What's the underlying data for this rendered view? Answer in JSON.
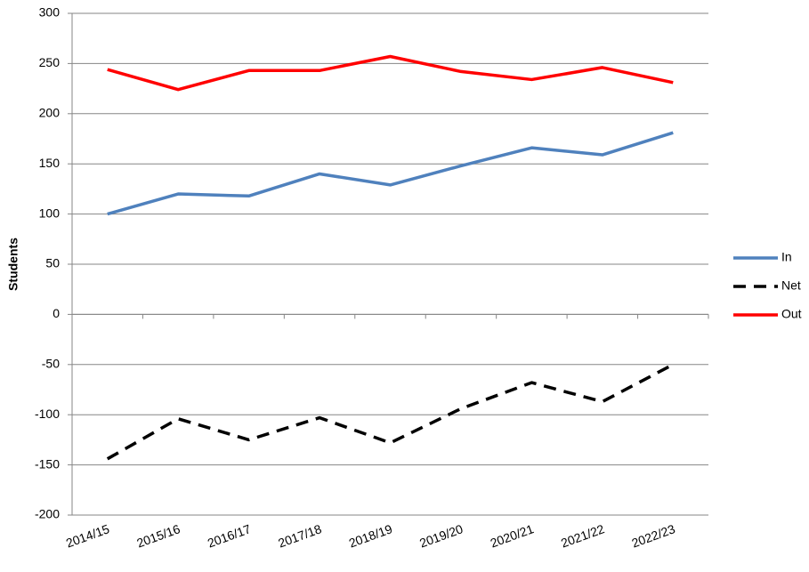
{
  "chart_data": {
    "type": "line",
    "y_label": "Students",
    "categories": [
      "2014/15",
      "2015/16",
      "2016/17",
      "2017/18",
      "2018/19",
      "2019/20",
      "2020/21",
      "2021/22",
      "2022/23"
    ],
    "series": [
      {
        "name": "In",
        "color": "#4f81bd",
        "dashed": false,
        "values": [
          100,
          120,
          118,
          140,
          129,
          148,
          166,
          159,
          181
        ]
      },
      {
        "name": "Net",
        "color": "#000000",
        "dashed": true,
        "values": [
          -144,
          -104,
          -125,
          -103,
          -128,
          -94,
          -68,
          -87,
          -50
        ]
      },
      {
        "name": "Out",
        "color": "#ff0000",
        "dashed": false,
        "values": [
          244,
          224,
          243,
          243,
          257,
          242,
          234,
          246,
          231
        ]
      }
    ],
    "ylim": [
      -200,
      300
    ],
    "yticks": [
      -200,
      -150,
      -100,
      -50,
      0,
      50,
      100,
      150,
      200,
      250,
      300
    ],
    "grid": true,
    "legend": "right"
  }
}
